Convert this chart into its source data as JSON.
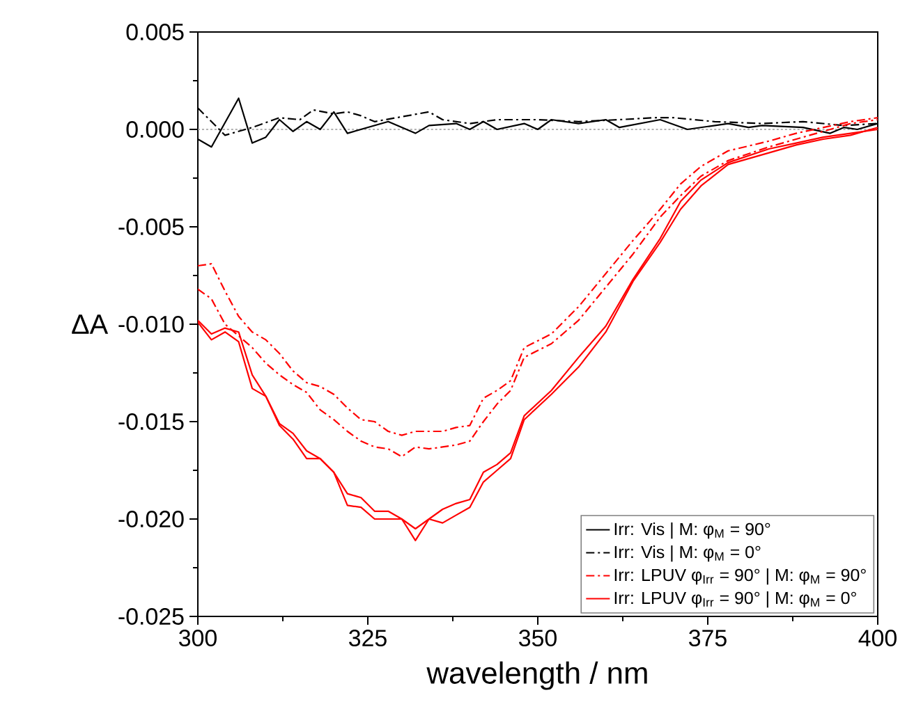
{
  "chart_data": {
    "type": "line",
    "xlabel": "wavelength / nm",
    "ylabel": "ΔA",
    "xlim": [
      300,
      400
    ],
    "ylim": [
      -0.025,
      0.005
    ],
    "xticks": [
      300,
      325,
      350,
      375,
      400
    ],
    "yticks": [
      {
        "value": -0.025,
        "label": "-0.025"
      },
      {
        "value": -0.02,
        "label": "-0.020"
      },
      {
        "value": -0.015,
        "label": "-0.015"
      },
      {
        "value": -0.01,
        "label": "-0.010"
      },
      {
        "value": -0.005,
        "label": "-0.005"
      },
      {
        "value": 0,
        "label": "0.000"
      },
      {
        "value": 0.005,
        "label": "0.005"
      }
    ],
    "legend": "bottom right",
    "ref_lines": [
      {
        "axis": "y",
        "value": 0,
        "color": "#999999",
        "line_style": "dotted"
      }
    ],
    "x": [
      300,
      302,
      304,
      306,
      308,
      310,
      312,
      314,
      316,
      318,
      320,
      322,
      324,
      326,
      328,
      330,
      332,
      334,
      336,
      338,
      340,
      342,
      344,
      346,
      348,
      352,
      356,
      360,
      364,
      368,
      371,
      374,
      378,
      384,
      388,
      392,
      396,
      400
    ],
    "series": [
      {
        "name": "Irr: Vis | M: φ$_{M}$ = 90°",
        "color": "#000000",
        "line_style": "solid",
        "x": [
          300,
          302,
          306,
          308,
          310,
          312,
          314,
          316,
          318,
          320,
          322,
          328,
          332,
          334,
          338,
          340,
          342,
          344,
          348,
          350,
          352,
          356,
          360,
          362,
          368,
          372,
          378,
          381,
          383,
          389,
          393,
          395,
          397,
          400
        ],
        "values": [
          -0.0005,
          -0.0009,
          0.0016,
          -0.0007,
          -0.0004,
          0.0005,
          -0.0001,
          0.0004,
          0.0,
          0.0009,
          -0.0002,
          0.0004,
          -0.0002,
          0.0002,
          0.0003,
          0.0,
          0.0004,
          0.0,
          0.0003,
          0.0,
          0.0005,
          0.0003,
          0.0005,
          0.0001,
          0.0005,
          0.0,
          0.0003,
          0.0001,
          0.0002,
          0.0001,
          -0.0002,
          0.0001,
          0.0,
          0.0003
        ]
      },
      {
        "name": "Irr: Vis | M: φ$_{M}$ = 0°",
        "color": "#000000",
        "line_style": "dashdot",
        "x": [
          300,
          302,
          304,
          308,
          312,
          315,
          317,
          320,
          322,
          324,
          326,
          334,
          336,
          340,
          344,
          350,
          356,
          362,
          367,
          370,
          376,
          383,
          389,
          395,
          400
        ],
        "values": [
          0.0011,
          0.0004,
          -0.0003,
          0.0001,
          0.0006,
          0.0005,
          0.001,
          0.0008,
          0.0009,
          0.0007,
          0.0004,
          0.0009,
          0.0005,
          0.0003,
          0.0005,
          0.0005,
          0.0004,
          0.0005,
          0.0006,
          0.0006,
          0.0004,
          0.0003,
          0.0004,
          0.0002,
          0.0003
        ]
      },
      {
        "name": "Irr: LPUV φ$_{Irr}$ = 90° | M: φ$_{M}$ = 90°",
        "color": "#ff0000",
        "line_style": "dashdot",
        "values": [
          -0.007,
          -0.0069,
          -0.0083,
          -0.0096,
          -0.0104,
          -0.0108,
          -0.0115,
          -0.0124,
          -0.013,
          -0.0132,
          -0.0136,
          -0.0143,
          -0.0149,
          -0.015,
          -0.0155,
          -0.0157,
          -0.0155,
          -0.0155,
          -0.0155,
          -0.0153,
          -0.0152,
          -0.0138,
          -0.0134,
          -0.0129,
          -0.0112,
          -0.0105,
          -0.0091,
          -0.0074,
          -0.0057,
          -0.0041,
          -0.0028,
          -0.0019,
          -0.0011,
          -0.0006,
          -0.0002,
          0.0001,
          0.0004,
          0.0006
        ]
      },
      {
        "name": "Irr: LPUV φ$_{Irr}$ = 90° | M: φ$_{M}$ = 0°",
        "color": "#ff0000",
        "line_style": "solid",
        "values": [
          -0.0098,
          -0.0105,
          -0.0102,
          -0.0104,
          -0.0126,
          -0.0137,
          -0.0151,
          -0.0156,
          -0.0165,
          -0.0169,
          -0.0176,
          -0.0187,
          -0.0189,
          -0.0196,
          -0.0196,
          -0.02,
          -0.0205,
          -0.02,
          -0.0195,
          -0.0192,
          -0.019,
          -0.0176,
          -0.0172,
          -0.0166,
          -0.0147,
          -0.0134,
          -0.0117,
          -0.0101,
          -0.0077,
          -0.0056,
          -0.0037,
          -0.0026,
          -0.0017,
          -0.001,
          -0.0007,
          -0.0004,
          -0.0002,
          0.0
        ]
      },
      {
        "color": "#ff0000",
        "line_style": "dashdot",
        "values": [
          -0.0082,
          -0.0087,
          -0.01,
          -0.0106,
          -0.0112,
          -0.012,
          -0.0126,
          -0.0131,
          -0.0135,
          -0.0144,
          -0.0149,
          -0.0155,
          -0.016,
          -0.0163,
          -0.0164,
          -0.0168,
          -0.0163,
          -0.0164,
          -0.0163,
          -0.0162,
          -0.016,
          -0.015,
          -0.0141,
          -0.0134,
          -0.0117,
          -0.011,
          -0.0098,
          -0.0081,
          -0.0064,
          -0.0045,
          -0.0034,
          -0.0024,
          -0.0016,
          -0.0009,
          -0.0005,
          -0.0001,
          0.0003,
          0.0005
        ]
      },
      {
        "color": "#ff0000",
        "line_style": "solid",
        "values": [
          -0.0099,
          -0.0108,
          -0.0104,
          -0.0109,
          -0.0133,
          -0.0137,
          -0.0152,
          -0.0159,
          -0.0169,
          -0.0169,
          -0.0176,
          -0.0193,
          -0.0194,
          -0.02,
          -0.02,
          -0.02,
          -0.0211,
          -0.02,
          -0.0202,
          -0.0198,
          -0.0194,
          -0.0181,
          -0.0175,
          -0.0169,
          -0.0149,
          -0.0136,
          -0.0122,
          -0.0104,
          -0.0078,
          -0.0058,
          -0.0041,
          -0.0029,
          -0.0018,
          -0.0012,
          -0.0008,
          -0.0005,
          -0.0003,
          0.0001
        ]
      }
    ]
  }
}
